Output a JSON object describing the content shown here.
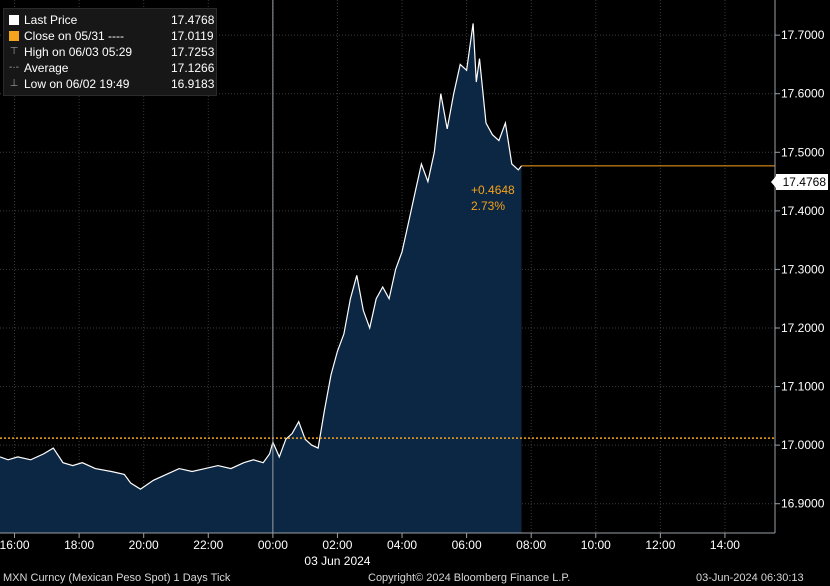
{
  "legend": {
    "items": [
      {
        "label": "Last Price",
        "value": "17.4768",
        "color": "#ffffff",
        "glyph": "square"
      },
      {
        "label": "Close on 05/31 ----",
        "value": "17.0119",
        "color": "#f5a21c",
        "glyph": "square"
      },
      {
        "label": "High on 06/03 05:29",
        "value": "17.7253",
        "color": "#9aa0a6",
        "glyph": "high-marker"
      },
      {
        "label": "Average",
        "value": "17.1266",
        "color": "#9aa0a6",
        "glyph": "average-marker"
      },
      {
        "label": "Low on 06/02 19:49",
        "value": "16.9183",
        "color": "#9aa0a6",
        "glyph": "low-marker"
      }
    ]
  },
  "price_tag": "17.4768",
  "change": {
    "abs": "+0.4648",
    "pct": "2.73%"
  },
  "footer": {
    "left": "MXN Curncy (Mexican Peso Spot)  1 Days  Tick",
    "center": "Copyright© 2024 Bloomberg Finance L.P.",
    "right": "03-Jun-2024 06:30:13"
  },
  "colors": {
    "background": "#000000",
    "area_fill": "#0c2743",
    "line": "#ffffff",
    "close_line": "#f5a21c",
    "last_line": "#f5a21c",
    "grid": "#3a3a3a"
  },
  "chart_data": {
    "type": "area",
    "ylim": [
      16.85,
      17.76
    ],
    "yticks": [
      16.9,
      17.0,
      17.1,
      17.2,
      17.3,
      17.4,
      17.5,
      17.6,
      17.7
    ],
    "ytick_labels": [
      "16.9000",
      "17.0000",
      "17.1000",
      "17.2000",
      "17.3000",
      "17.4000",
      "17.5000",
      "17.6000",
      "17.7000"
    ],
    "xlim": [
      15.55,
      39.55
    ],
    "xticks": [
      16,
      18,
      20,
      22,
      24,
      26,
      28,
      30,
      32,
      34,
      36,
      38
    ],
    "xtick_labels": [
      "16:00",
      "18:00",
      "20:00",
      "22:00",
      "00:00",
      "02:00",
      "04:00",
      "06:00",
      "08:00",
      "10:00",
      "12:00",
      "14:00"
    ],
    "date_label": "03 Jun 2024",
    "date_label_x": 26.0,
    "day_divider_x": 24,
    "close_value": 17.0119,
    "last_value": 17.4768,
    "series": [
      {
        "name": "Last Price",
        "x": [
          15.55,
          15.8,
          16.1,
          16.5,
          16.9,
          17.2,
          17.5,
          17.8,
          18.1,
          18.5,
          19.0,
          19.4,
          19.6,
          19.9,
          20.3,
          20.7,
          21.1,
          21.5,
          21.9,
          22.3,
          22.7,
          23.1,
          23.4,
          23.7,
          23.9,
          24.0,
          24.2,
          24.4,
          24.6,
          24.8,
          25.0,
          25.2,
          25.4,
          25.6,
          25.8,
          26.0,
          26.2,
          26.4,
          26.6,
          26.8,
          27.0,
          27.2,
          27.4,
          27.6,
          27.8,
          28.0,
          28.2,
          28.4,
          28.6,
          28.8,
          29.0,
          29.2,
          29.4,
          29.6,
          29.8,
          30.0,
          30.2,
          30.3,
          30.4,
          30.6,
          30.8,
          31.0,
          31.2,
          31.4,
          31.6,
          31.7
        ],
        "y": [
          16.98,
          16.975,
          16.98,
          16.975,
          16.985,
          16.995,
          16.97,
          16.965,
          16.97,
          16.96,
          16.955,
          16.95,
          16.935,
          16.925,
          16.94,
          16.95,
          16.96,
          16.955,
          16.96,
          16.965,
          16.96,
          16.97,
          16.975,
          16.97,
          16.985,
          17.005,
          16.98,
          17.01,
          17.02,
          17.04,
          17.01,
          17.0,
          16.995,
          17.06,
          17.12,
          17.16,
          17.19,
          17.25,
          17.29,
          17.23,
          17.2,
          17.25,
          17.27,
          17.25,
          17.3,
          17.33,
          17.38,
          17.43,
          17.48,
          17.45,
          17.5,
          17.6,
          17.54,
          17.6,
          17.65,
          17.64,
          17.72,
          17.62,
          17.66,
          17.55,
          17.53,
          17.52,
          17.55,
          17.48,
          17.47,
          17.4768
        ]
      }
    ]
  }
}
